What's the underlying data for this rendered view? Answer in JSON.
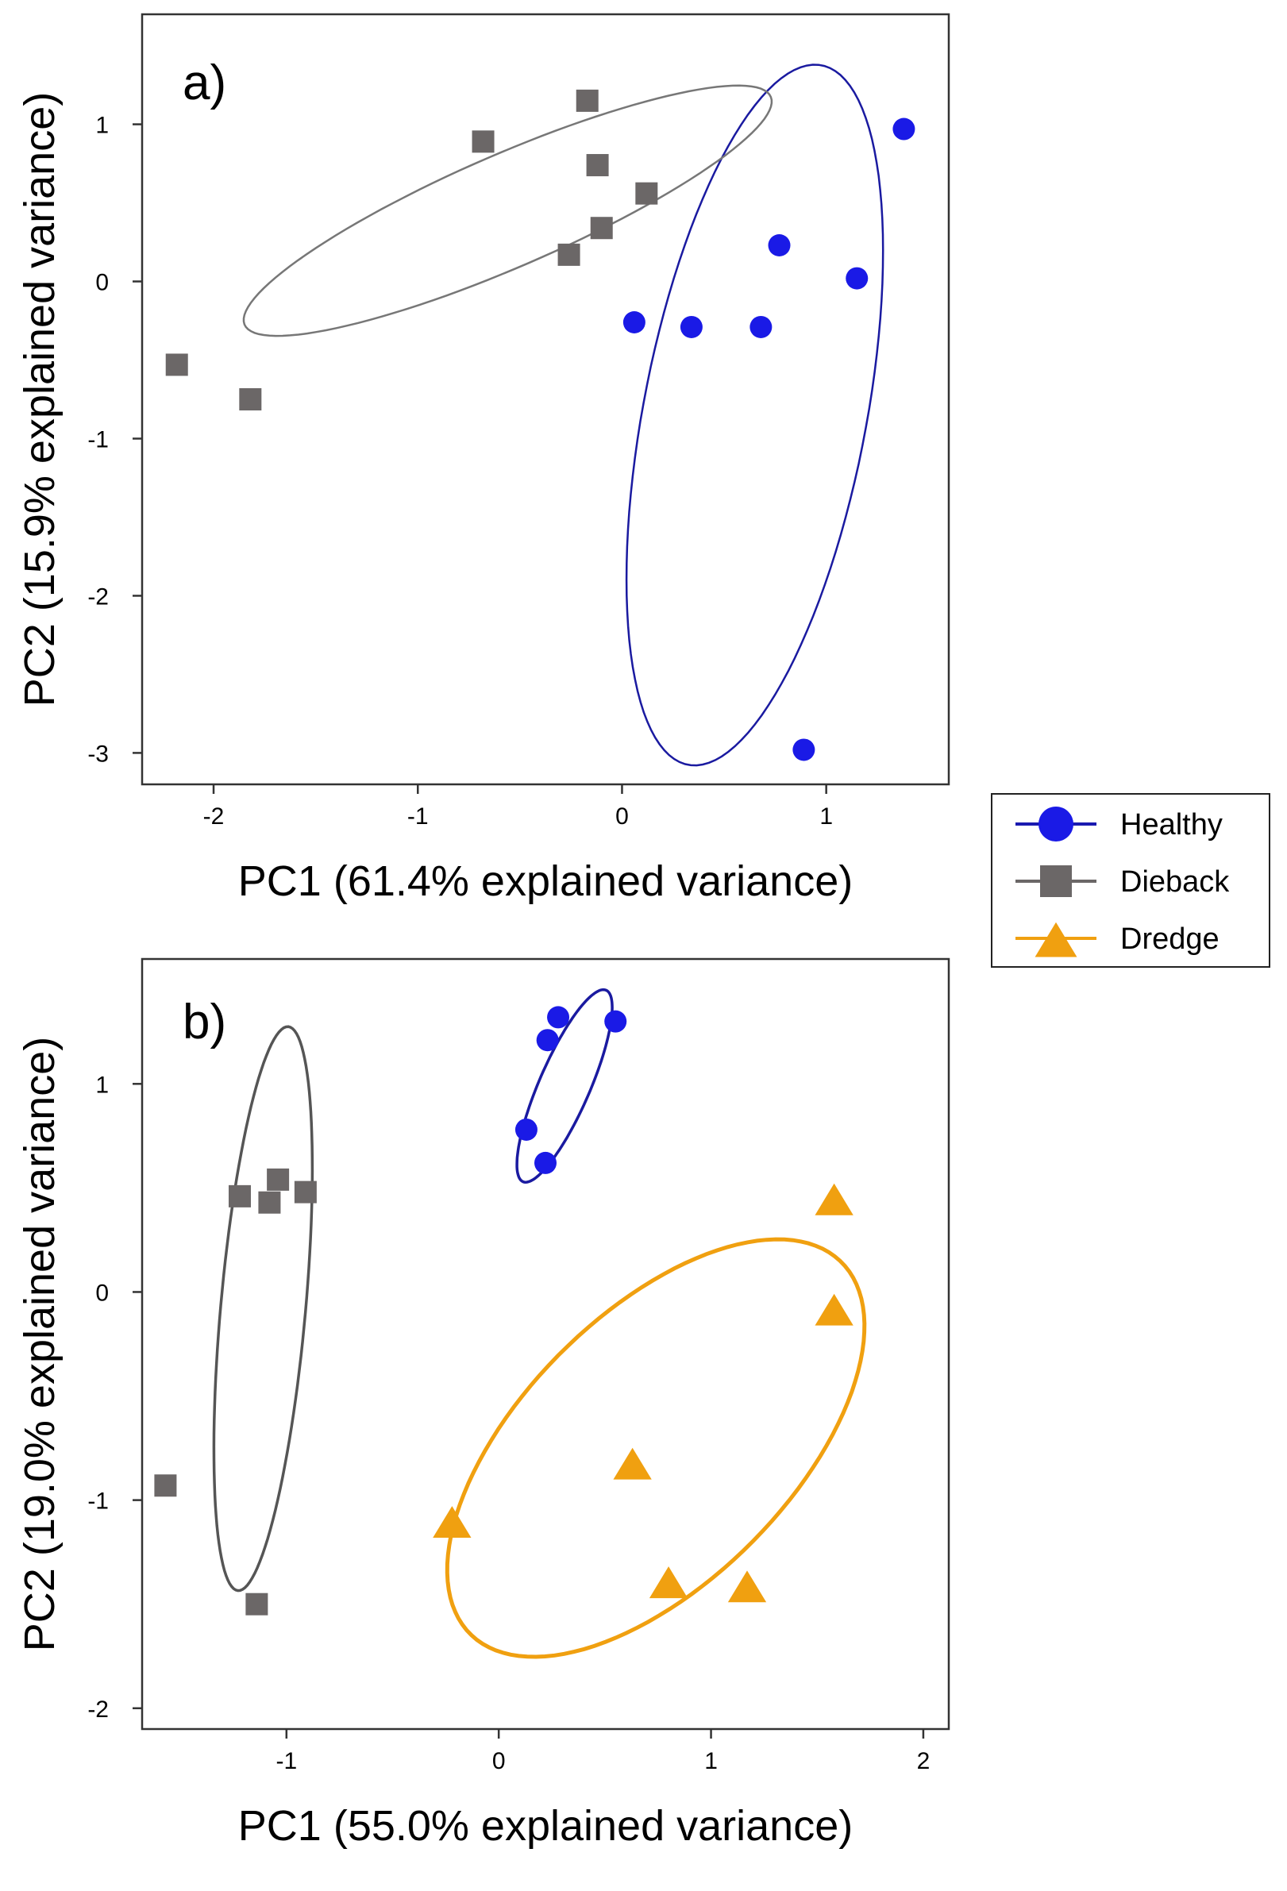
{
  "chart_data": [
    {
      "panel_label": "a)",
      "type": "scatter",
      "xlabel": "PC1 (61.4% explained variance)",
      "ylabel": "PC2 (15.9% explained variance)",
      "xlim": [
        -2.35,
        1.6
      ],
      "ylim": [
        -3.2,
        1.7
      ],
      "xticks": [
        {
          "value": -2,
          "label": "-2"
        },
        {
          "value": -1,
          "label": "-1"
        },
        {
          "value": 0,
          "label": "0"
        },
        {
          "value": 1,
          "label": "1"
        }
      ],
      "yticks": [
        {
          "value": 1,
          "label": "1"
        },
        {
          "value": 0,
          "label": "0"
        },
        {
          "value": -1,
          "label": "-1"
        },
        {
          "value": -2,
          "label": "-2"
        },
        {
          "value": -3,
          "label": "-3"
        }
      ],
      "grid": false,
      "series": [
        {
          "name": "Healthy",
          "marker": "circle",
          "color": "#1a1ae6",
          "points": [
            [
              1.38,
              0.97
            ],
            [
              0.77,
              0.23
            ],
            [
              1.15,
              0.02
            ],
            [
              0.06,
              -0.26
            ],
            [
              0.34,
              -0.29
            ],
            [
              0.68,
              -0.29
            ],
            [
              0.89,
              -2.98
            ]
          ],
          "ellipse": {
            "cx": 0.65,
            "cy": -0.85,
            "rx": 0.55,
            "ry": 2.25,
            "angle_deg": -8,
            "color": "#1a1aa0"
          }
        },
        {
          "name": "Dieback",
          "marker": "square",
          "color": "#6b6767",
          "points": [
            [
              -0.17,
              1.15
            ],
            [
              -0.68,
              0.89
            ],
            [
              -0.12,
              0.74
            ],
            [
              0.12,
              0.56
            ],
            [
              -0.1,
              0.34
            ],
            [
              -0.26,
              0.17
            ],
            [
              -2.18,
              -0.53
            ],
            [
              -1.82,
              -0.75
            ]
          ],
          "ellipse": {
            "cx": -0.56,
            "cy": 0.45,
            "rx": 1.48,
            "ry": 0.34,
            "angle_deg": 30,
            "color": "#777777"
          }
        }
      ]
    },
    {
      "panel_label": "b)",
      "type": "scatter",
      "xlabel": "PC1 (55.0% explained variance)",
      "ylabel": "PC2 (19.0% explained variance)",
      "xlim": [
        -1.68,
        2.12
      ],
      "ylim": [
        -2.1,
        1.6
      ],
      "xticks": [
        {
          "value": -1,
          "label": "-1"
        },
        {
          "value": 0,
          "label": "0"
        },
        {
          "value": 1,
          "label": "1"
        },
        {
          "value": 2,
          "label": "2"
        }
      ],
      "yticks": [
        {
          "value": 1,
          "label": "1"
        },
        {
          "value": 0,
          "label": "0"
        },
        {
          "value": -1,
          "label": "-1"
        },
        {
          "value": -2,
          "label": "-2"
        }
      ],
      "grid": false,
      "series": [
        {
          "name": "Healthy",
          "marker": "circle",
          "color": "#1a1ae6",
          "points": [
            [
              0.28,
              1.32
            ],
            [
              0.55,
              1.3
            ],
            [
              0.23,
              1.21
            ],
            [
              0.13,
              0.78
            ],
            [
              0.22,
              0.62
            ]
          ],
          "ellipse": {
            "cx": 0.31,
            "cy": 0.99,
            "rx": 0.5,
            "ry": 0.12,
            "angle_deg": 67,
            "color": "#1a1aa0"
          }
        },
        {
          "name": "Dieback",
          "marker": "square",
          "color": "#6b6767",
          "points": [
            [
              -1.04,
              0.54
            ],
            [
              -1.22,
              0.46
            ],
            [
              -0.91,
              0.48
            ],
            [
              -1.08,
              0.43
            ],
            [
              -1.57,
              -0.93
            ],
            [
              -1.14,
              -1.5
            ]
          ],
          "ellipse": {
            "cx": -1.11,
            "cy": -0.08,
            "rx": 1.36,
            "ry": 0.2,
            "angle_deg": 85,
            "color": "#555555"
          }
        },
        {
          "name": "Dredge",
          "marker": "triangle",
          "color": "#f0a010",
          "points": [
            [
              1.58,
              0.43
            ],
            [
              1.58,
              -0.1
            ],
            [
              0.63,
              -0.84
            ],
            [
              -0.22,
              -1.12
            ],
            [
              0.8,
              -1.41
            ],
            [
              1.17,
              -1.43
            ]
          ],
          "ellipse": {
            "cx": 0.74,
            "cy": -0.75,
            "rx": 1.25,
            "ry": 0.64,
            "angle_deg": 46,
            "color": "#f0a010"
          }
        }
      ]
    }
  ],
  "legend": {
    "items": [
      {
        "label": "Healthy",
        "marker": "circle",
        "color": "#1a1ae6",
        "line_color": "#1a1ab0"
      },
      {
        "label": "Dieback",
        "marker": "square",
        "color": "#6b6767",
        "line_color": "#6b6767"
      },
      {
        "label": "Dredge",
        "marker": "triangle",
        "color": "#f0a010",
        "line_color": "#f0a010"
      }
    ]
  }
}
